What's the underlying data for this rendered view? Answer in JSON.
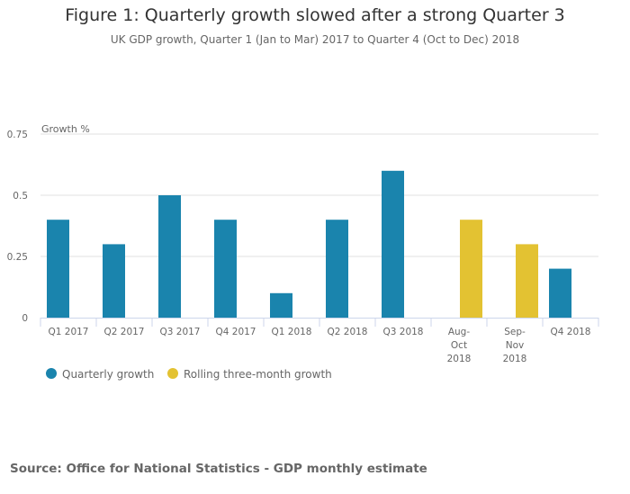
{
  "title": "Figure 1: Quarterly growth slowed after a strong Quarter 3",
  "subtitle": "UK GDP growth, Quarter 1 (Jan to Mar) 2017 to Quarter 4 (Oct to Dec) 2018",
  "source": "Source: Office for National Statistics - GDP monthly estimate",
  "chart_data": {
    "type": "bar",
    "title": "Figure 1: Quarterly growth slowed after a strong Quarter 3",
    "subtitle": "UK GDP growth, Quarter 1 (Jan to Mar) 2017 to Quarter 4 (Oct to Dec) 2018",
    "xlabel": "",
    "ylabel": "Growth %",
    "ylim": [
      0,
      0.75
    ],
    "yticks": [
      0,
      0.25,
      0.5,
      0.75
    ],
    "ytick_labels": [
      "0",
      "0.25",
      "0.5",
      "0.75"
    ],
    "grid": true,
    "legend": "bottom-left",
    "categories": [
      [
        "Q1 2017"
      ],
      [
        "Q2 2017"
      ],
      [
        "Q3 2017"
      ],
      [
        "Q4 2017"
      ],
      [
        "Q1 2018"
      ],
      [
        "Q2 2018"
      ],
      [
        "Q3 2018"
      ],
      [
        "Aug-",
        "Oct",
        "2018"
      ],
      [
        "Sep-",
        "Nov",
        "2018"
      ],
      [
        "Q4 2018"
      ]
    ],
    "series": [
      {
        "name": "Quarterly growth",
        "color": "#1a84ad",
        "values": [
          0.4,
          0.3,
          0.5,
          0.4,
          0.1,
          0.4,
          0.6,
          null,
          null,
          0.2
        ]
      },
      {
        "name": "Rolling three-month growth",
        "color": "#e3c232",
        "values": [
          null,
          null,
          null,
          null,
          null,
          null,
          null,
          0.4,
          0.3,
          null
        ]
      }
    ]
  }
}
